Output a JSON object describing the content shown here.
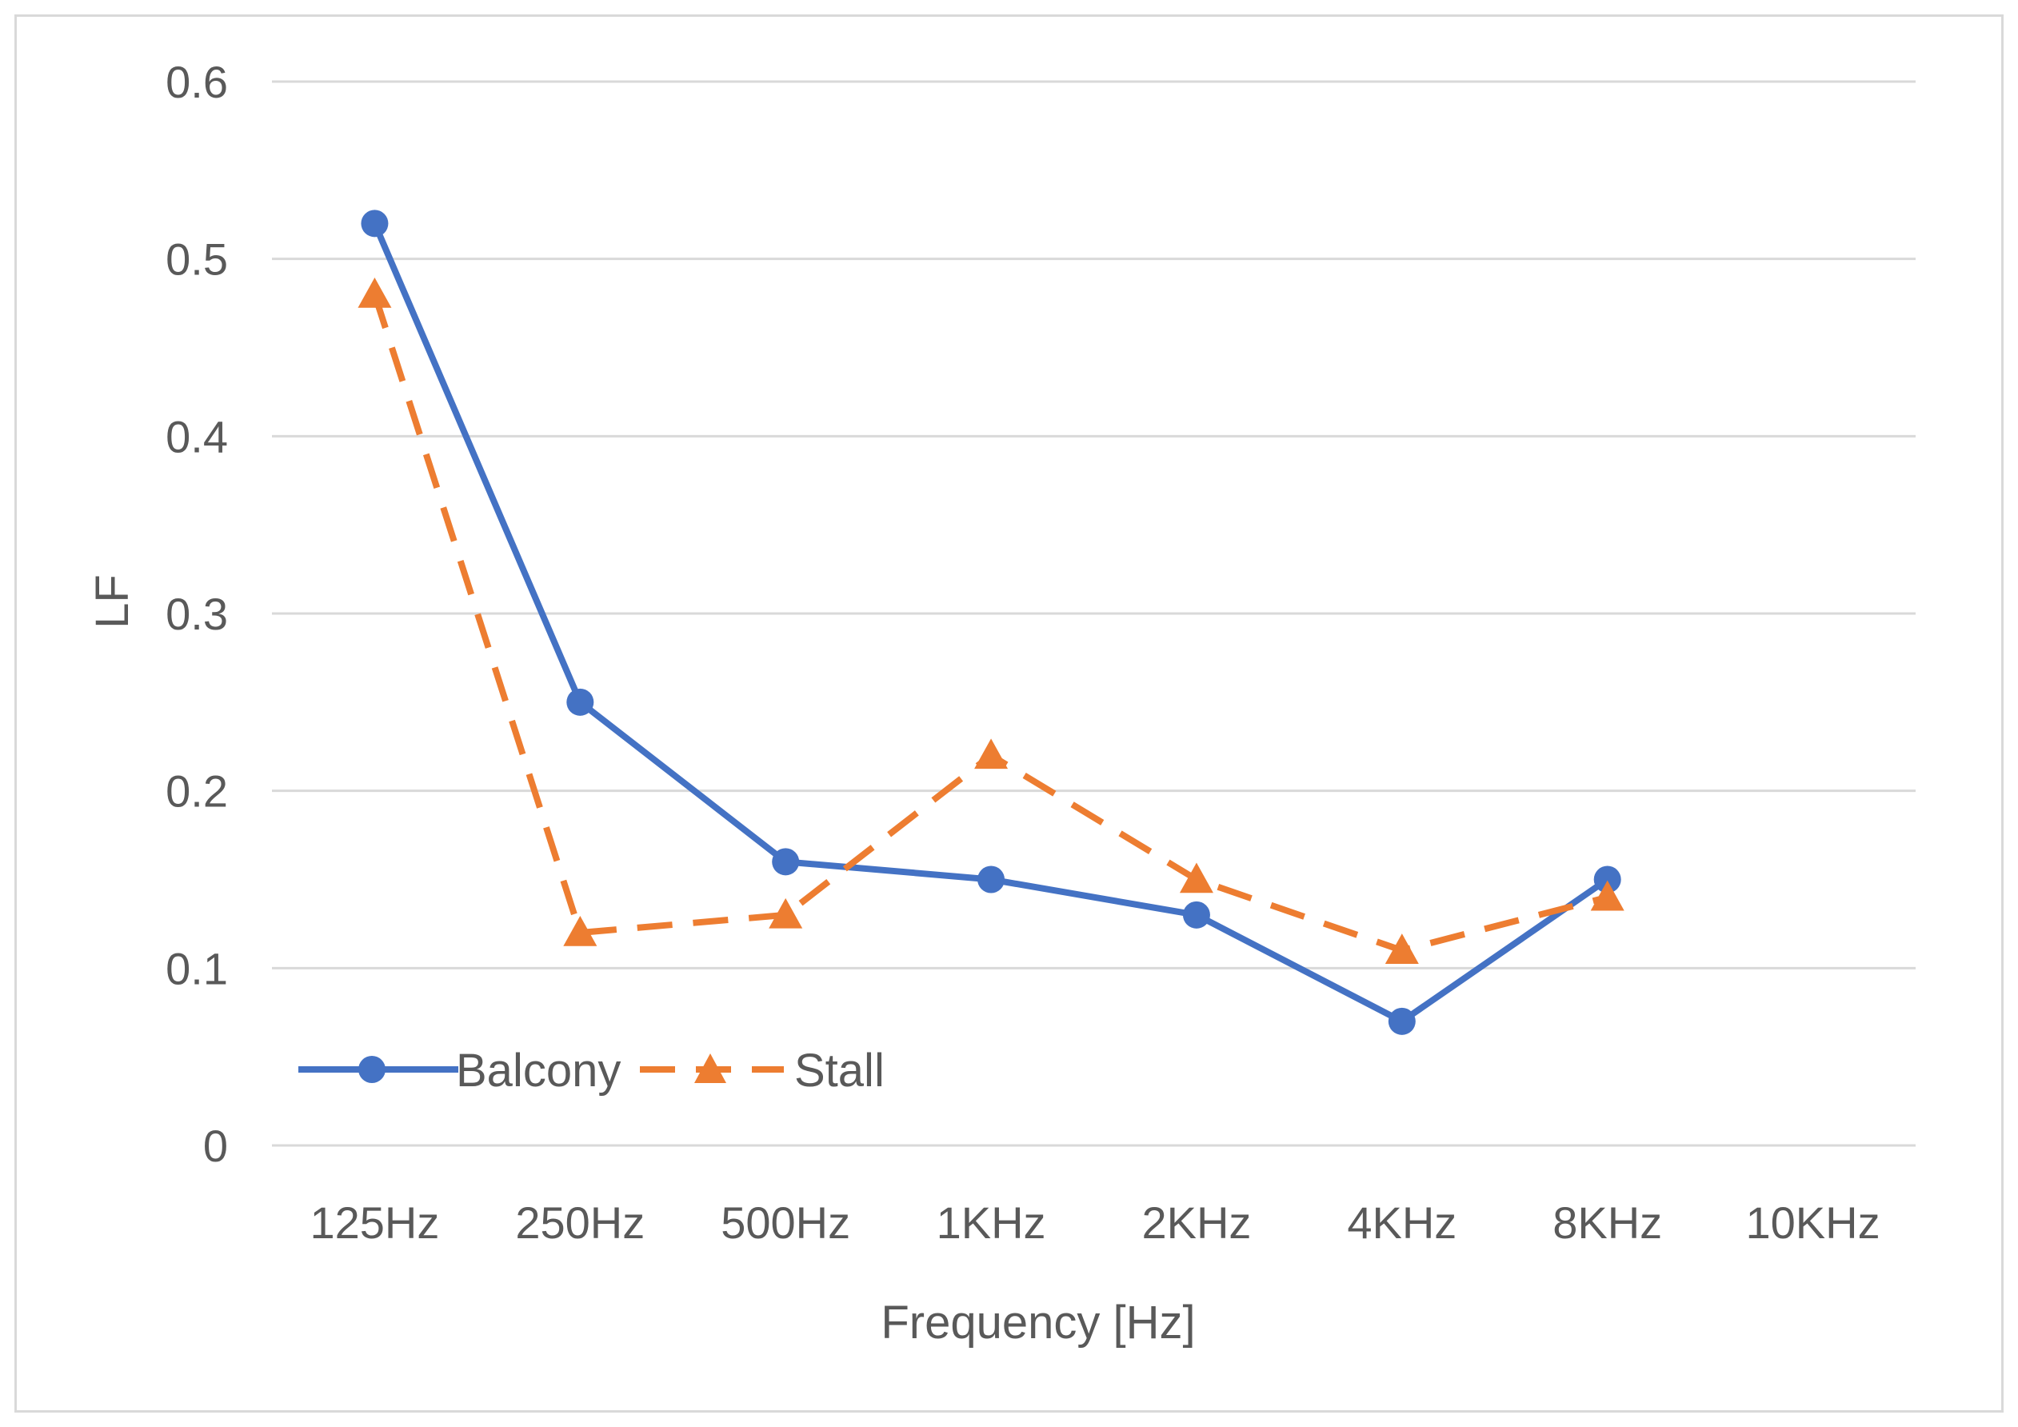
{
  "chart_data": {
    "type": "line",
    "title": "",
    "xlabel": "Frequency [Hz]",
    "ylabel": "LF",
    "categories": [
      "125Hz",
      "250Hz",
      "500Hz",
      "1KHz",
      "2KHz",
      "4KHz",
      "8KHz",
      "10KHz"
    ],
    "ylim": [
      0,
      0.6
    ],
    "yticks": [
      0,
      0.1,
      0.2,
      0.3,
      0.4,
      0.5,
      0.6
    ],
    "ytick_labels": [
      "0",
      "0.1",
      "0.2",
      "0.3",
      "0.4",
      "0.5",
      "0.6"
    ],
    "grid": "horizontal",
    "legend_position": "bottom-left",
    "series": [
      {
        "name": "Balcony",
        "values": [
          0.52,
          0.25,
          0.16,
          0.15,
          0.13,
          0.07,
          0.15,
          null
        ],
        "color": "#4472c4",
        "line_style": "solid",
        "marker": "circle"
      },
      {
        "name": "Stall",
        "values": [
          0.48,
          0.12,
          0.13,
          0.22,
          0.15,
          0.11,
          0.14,
          null
        ],
        "color": "#ed7d31",
        "line_style": "dashed",
        "marker": "triangle"
      }
    ]
  }
}
